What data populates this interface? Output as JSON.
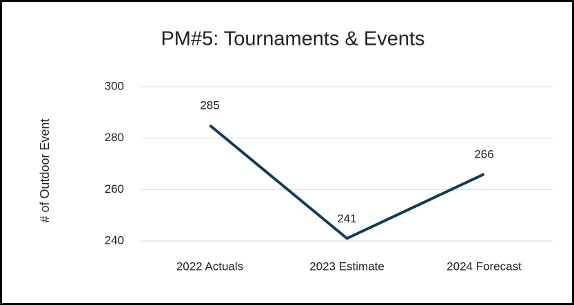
{
  "chart_data": {
    "type": "line",
    "title": "PM#5: Tournaments & Events",
    "ylabel": "# of  Outdoor Event",
    "categories": [
      "2022 Actuals",
      "2023 Estimate",
      "2024 Forecast"
    ],
    "series": [
      {
        "name": "# of  Outdoor Event",
        "color": "#0e3d59",
        "values": [
          285,
          241,
          266
        ]
      }
    ],
    "ylim": [
      240,
      300
    ],
    "yticks": [
      240,
      260,
      280,
      300
    ],
    "grid": true
  }
}
